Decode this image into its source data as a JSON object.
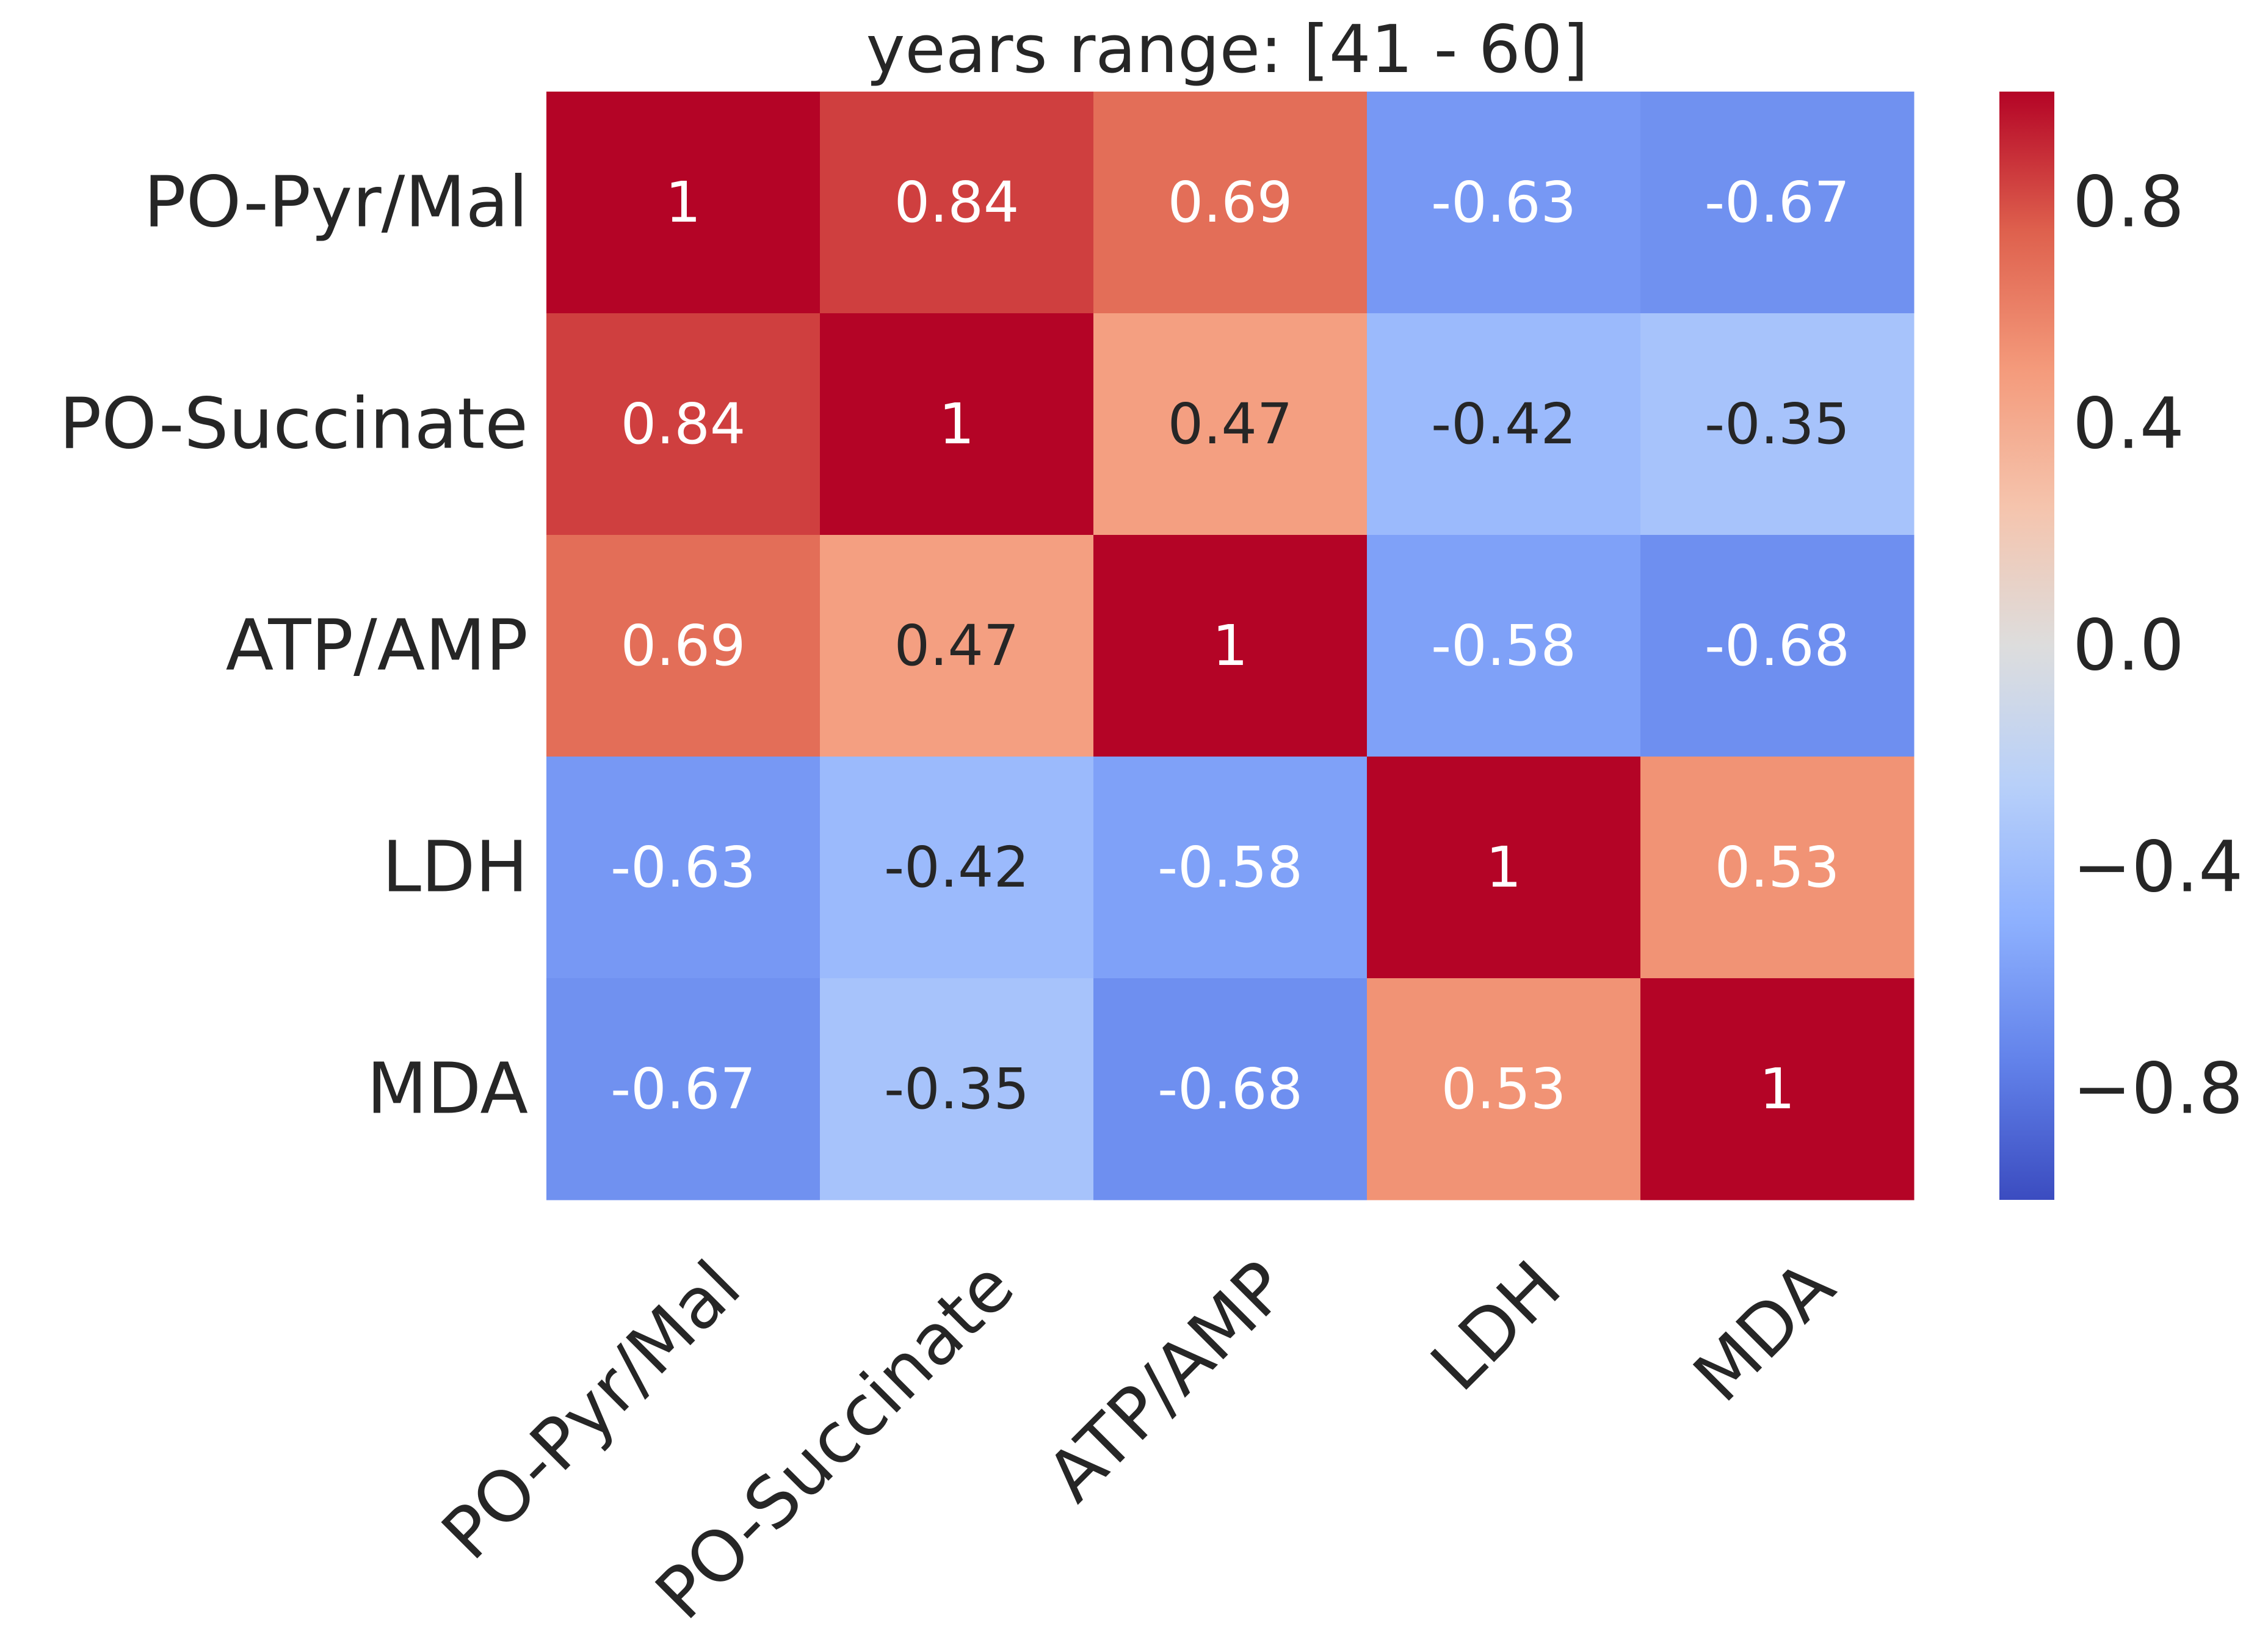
{
  "chart_data": {
    "type": "heatmap",
    "title": "years range: [41 - 60]",
    "xlabel": "",
    "ylabel": "",
    "rows": [
      "PO-Pyr/Mal",
      "PO-Succinate",
      "ATP/AMP",
      "LDH",
      "MDA"
    ],
    "columns": [
      "PO-Pyr/Mal",
      "PO-Succinate",
      "ATP/AMP",
      "LDH",
      "MDA"
    ],
    "values": [
      [
        1,
        0.84,
        0.69,
        -0.63,
        -0.67
      ],
      [
        0.84,
        1,
        0.47,
        -0.42,
        -0.35
      ],
      [
        0.69,
        0.47,
        1,
        -0.58,
        -0.68
      ],
      [
        -0.63,
        -0.42,
        -0.58,
        1,
        0.53
      ],
      [
        -0.67,
        -0.35,
        -0.68,
        0.53,
        1
      ]
    ],
    "cell_labels": [
      [
        "1",
        "0.84",
        "0.69",
        "-0.63",
        "-0.67"
      ],
      [
        "0.84",
        "1",
        "0.47",
        "-0.42",
        "-0.35"
      ],
      [
        "0.69",
        "0.47",
        "1",
        "-0.58",
        "-0.68"
      ],
      [
        "-0.63",
        "-0.42",
        "-0.58",
        "1",
        "0.53"
      ],
      [
        "-0.67",
        "-0.35",
        "-0.68",
        "0.53",
        "1"
      ]
    ],
    "colormap": "coolwarm",
    "vmin": -1,
    "vmax": 1,
    "colorbar": {
      "ticks": [
        0.8,
        0.4,
        0.0,
        -0.4,
        -0.8
      ],
      "tick_labels": [
        "0.8",
        "0.4",
        "0.0",
        "−0.4",
        "−0.8"
      ]
    },
    "colors": {
      "text_dark": "#262626",
      "text_light": "#ffffff"
    }
  }
}
